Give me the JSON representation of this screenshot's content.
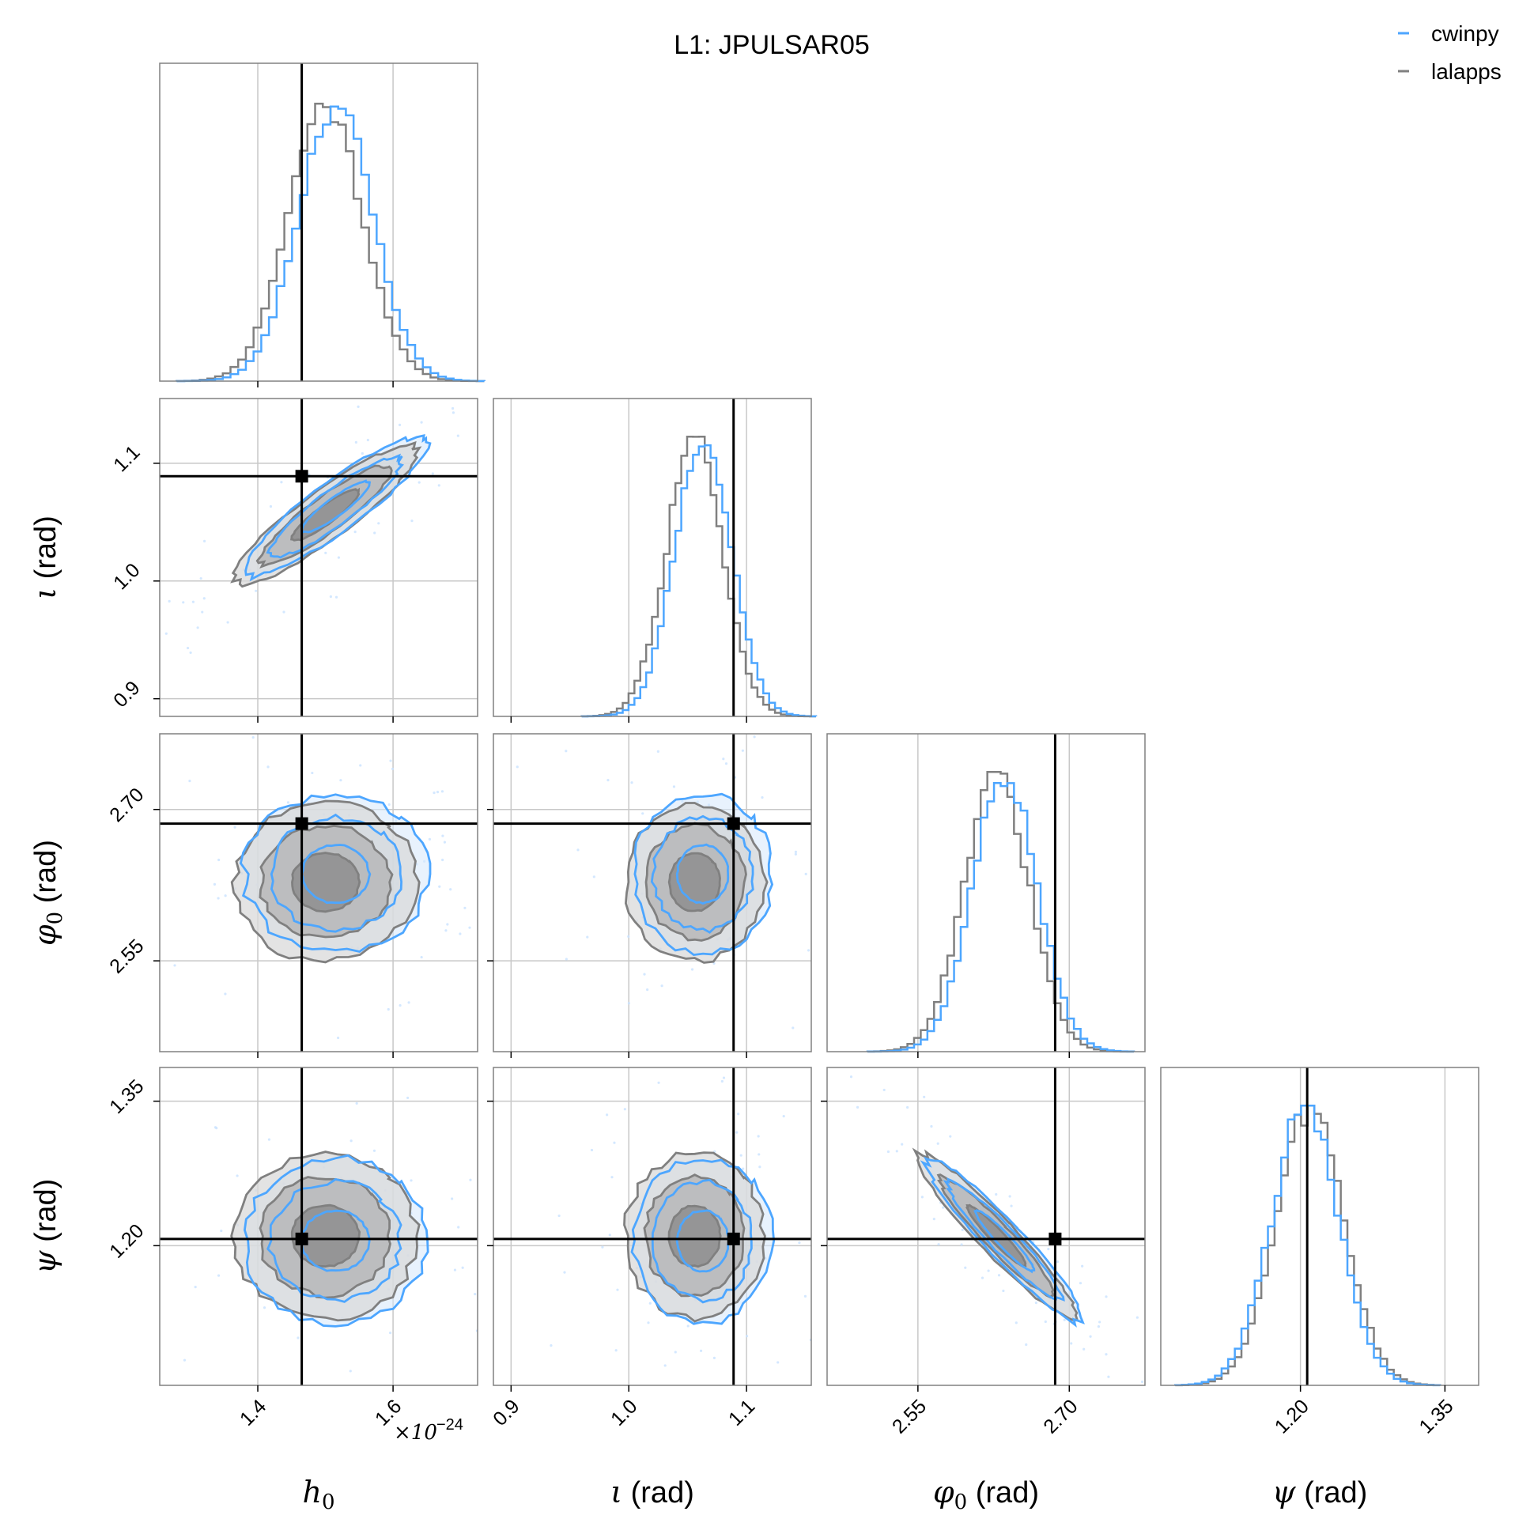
{
  "figure": {
    "title": "L1: JPULSAR05",
    "exponent_label": "×10",
    "exponent_power": "−24",
    "legend": [
      {
        "label": "cwinpy",
        "color": "#4da6ff"
      },
      {
        "label": "lalapps",
        "color": "#808080"
      }
    ]
  },
  "chart_data": {
    "type": "corner",
    "grid": true,
    "legend_position": "top-right",
    "parameters": [
      {
        "key": "h0",
        "label_symbol": "h",
        "label_sub": "0",
        "label_unit": "",
        "range": [
          1.255,
          1.725
        ],
        "ticks": [
          1.4,
          1.6
        ],
        "tick_labels": [
          "1.4",
          "1.6"
        ],
        "injected": 1.465,
        "mean_cwinpy": 1.515,
        "mean_lalapps": 1.5,
        "sd": 0.055
      },
      {
        "key": "iota",
        "label_symbol": "ι",
        "label_sub": "",
        "label_unit": "(rad)",
        "range": [
          0.885,
          1.155
        ],
        "ticks": [
          0.9,
          1.0,
          1.1
        ],
        "tick_labels": [
          "0.9",
          "1.0",
          "1.1"
        ],
        "injected": 1.089,
        "mean_cwinpy": 1.063,
        "mean_lalapps": 1.056,
        "sd": 0.024
      },
      {
        "key": "phi0",
        "label_symbol": "φ",
        "label_sub": "0",
        "label_unit": "(rad)",
        "range": [
          2.46,
          2.775
        ],
        "ticks": [
          2.55,
          2.7
        ],
        "tick_labels": [
          "2.55",
          "2.70"
        ],
        "injected": 2.686,
        "mean_cwinpy": 2.636,
        "mean_lalapps": 2.628,
        "sd": 0.032
      },
      {
        "key": "psi",
        "label_symbol": "ψ",
        "label_sub": "",
        "label_unit": "(rad)",
        "range": [
          1.055,
          1.385
        ],
        "ticks": [
          1.2,
          1.35
        ],
        "tick_labels": [
          "1.20",
          "1.35"
        ],
        "injected": 1.207,
        "mean_cwinpy": 1.205,
        "mean_lalapps": 1.21,
        "sd": 0.035
      }
    ],
    "series": [
      {
        "name": "cwinpy",
        "color": "#4da6ff"
      },
      {
        "name": "lalapps",
        "color": "#808080"
      }
    ],
    "correlations": {
      "iota_h0": 0.9,
      "psi_phi0": -0.95
    }
  }
}
